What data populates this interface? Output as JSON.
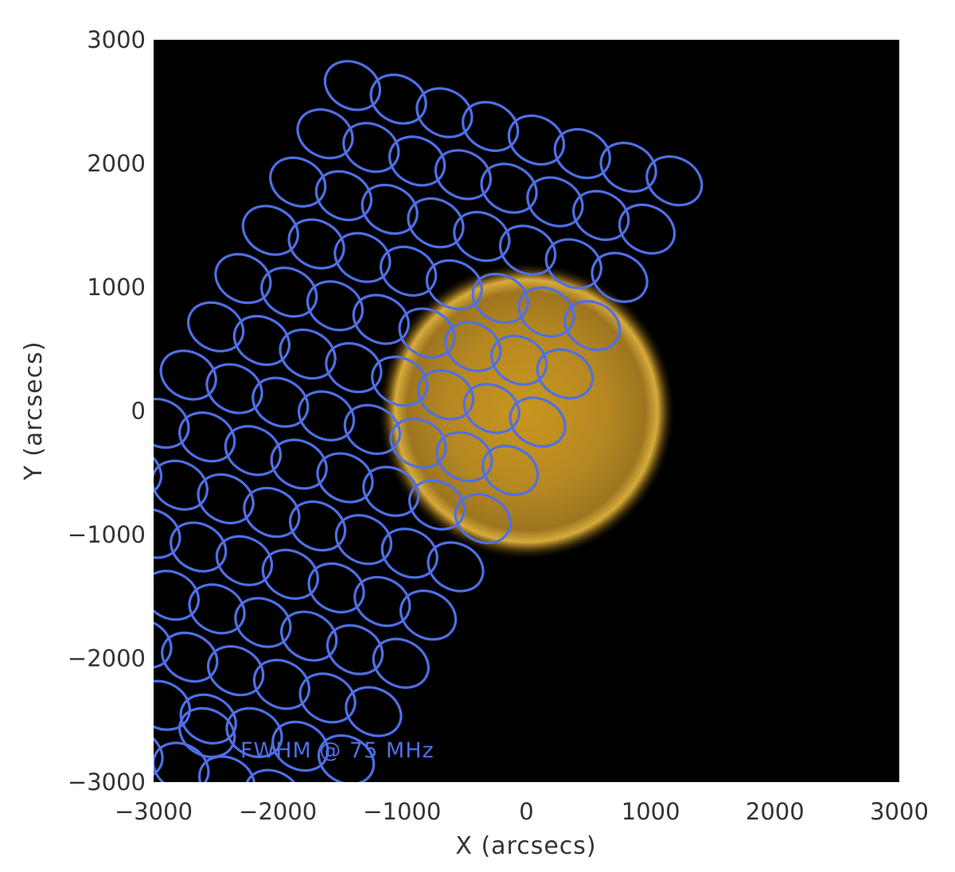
{
  "chart_data": {
    "type": "scatter",
    "title": "",
    "xlabel": "X (arcsecs)",
    "ylabel": "Y (arcsecs)",
    "xlim": [
      -3000,
      3000
    ],
    "ylim": [
      -3000,
      3000
    ],
    "xticks": [
      -3000,
      -2000,
      -1000,
      0,
      1000,
      2000,
      3000
    ],
    "yticks": [
      -3000,
      -2000,
      -1000,
      0,
      1000,
      2000,
      3000
    ],
    "xtick_labels": [
      "−3000",
      "−2000",
      "−1000",
      "0",
      "1000",
      "2000",
      "3000"
    ],
    "ytick_labels": [
      "−3000",
      "−2000",
      "−1000",
      "0",
      "1000",
      "2000",
      "3000"
    ],
    "background_color": "#000000",
    "beam_color": "#4f6fe6",
    "sun": {
      "center": [
        0,
        0
      ],
      "radius": 1000,
      "color": "#e0ad2c"
    },
    "beam": {
      "semi_major": 230,
      "semi_minor": 185,
      "rotation_deg": 28
    },
    "grid": {
      "rows": 15,
      "cols": 8,
      "row_step": [
        -220,
        -390
      ],
      "col_step": [
        370,
        -110
      ],
      "origin": [
        -1400,
        2630
      ]
    },
    "legend": {
      "label": "FWHM @ 75 MHz",
      "position": "bottom-left",
      "beam_center": [
        -2570,
        -2600
      ]
    }
  }
}
